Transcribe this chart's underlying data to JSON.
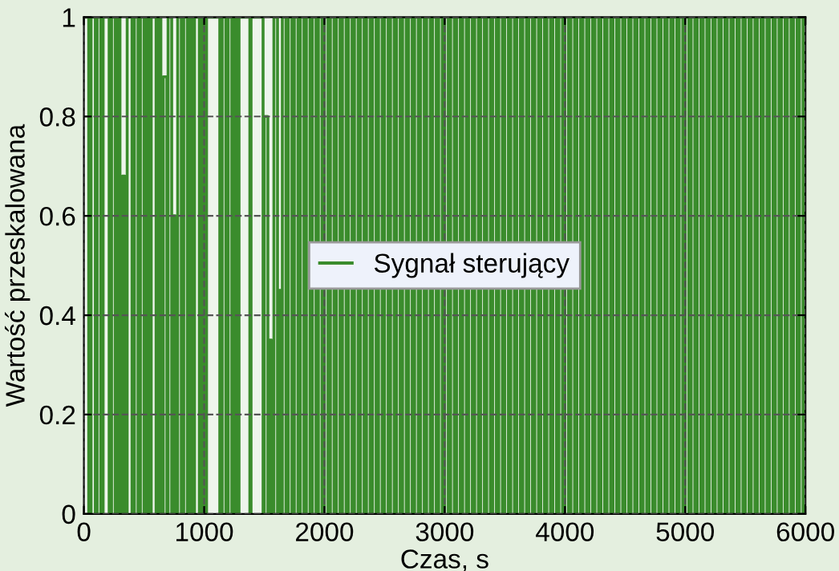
{
  "chart_data": {
    "type": "step",
    "xlabel": "Czas, s",
    "ylabel": "Wartość przeskalowana",
    "xlim": [
      0,
      6000
    ],
    "ylim": [
      0,
      1
    ],
    "xticks": [
      0,
      1000,
      2000,
      3000,
      4000,
      5000,
      6000
    ],
    "yticks": [
      0,
      0.2,
      0.4,
      0.6,
      0.8,
      1
    ],
    "grid": true,
    "legend": "center",
    "series": [
      {
        "name": "Sygnał sterujący",
        "color": "#3a8c2c",
        "x": [
          0,
          40,
          60,
          95,
          110,
          140,
          160,
          210,
          230,
          260,
          280,
          300,
          320,
          340,
          360,
          400,
          420,
          450,
          470,
          500,
          520,
          540,
          560,
          600,
          620,
          640,
          660,
          690,
          700,
          730,
          740,
          760,
          780,
          810,
          830,
          860,
          880,
          900,
          920,
          960,
          980,
          1000,
          1020,
          1130,
          1150,
          1180,
          1200,
          1230,
          1250,
          1270,
          1290,
          1380,
          1390,
          1490,
          1500,
          1530,
          1540,
          1560,
          1580,
          1610,
          1620,
          1640,
          1650,
          1680,
          1700,
          1730,
          1750,
          1780,
          1800,
          1830,
          1850,
          1880,
          1900,
          1930,
          1950,
          1980,
          2000,
          2030,
          2050,
          2080,
          2100,
          2130,
          2150,
          2180,
          2200,
          2230,
          2250,
          2280,
          2300,
          2330,
          2350,
          2380,
          2400,
          2430,
          2450,
          2480,
          2500,
          2530,
          2550,
          2580,
          2600,
          2630,
          2650,
          2680,
          2700,
          2730,
          2750,
          2780,
          2800,
          2830,
          2850,
          2880,
          2900,
          2930,
          2950,
          2980,
          3000,
          3030,
          3050,
          3080,
          3100,
          3130,
          3150,
          3180,
          3200,
          3230,
          3250,
          3280,
          3300,
          3330,
          3350,
          3380,
          3400,
          3430,
          3450,
          3480,
          3500,
          3530,
          3550,
          3580,
          3600,
          3630,
          3650,
          3680,
          3700,
          3730,
          3750,
          3780,
          3800,
          3830,
          3850,
          3880,
          3900,
          3930,
          3950,
          3980,
          4000,
          4030,
          4050,
          4080,
          4100,
          4130,
          4150,
          4180,
          4200,
          4230,
          4250,
          4280,
          4300,
          4330,
          4350,
          4380,
          4400,
          4430,
          4450,
          4480,
          4500,
          4530,
          4550,
          4580,
          4600,
          4630,
          4650,
          4680,
          4700,
          4730,
          4750,
          4780,
          4800,
          4830,
          4850,
          4880,
          4900,
          4930,
          4950,
          4980,
          5000,
          5030,
          5050,
          5080,
          5100,
          5130,
          5150,
          5180,
          5200,
          5230,
          5250,
          5280,
          5300,
          5330,
          5350,
          5380,
          5400,
          5430,
          5450,
          5480,
          5500,
          5530,
          5550,
          5580,
          5600,
          5630,
          5650,
          5680,
          5700,
          5730,
          5750,
          5780,
          5800,
          5830,
          5850,
          5880,
          5900,
          5930,
          5950,
          5980,
          6000
        ],
        "values": [
          1,
          0,
          1,
          0,
          1,
          0,
          1,
          0,
          1,
          0,
          1,
          0,
          0.68,
          0,
          1,
          0,
          1,
          0,
          1,
          0,
          1,
          0,
          1,
          0,
          1,
          0,
          0.88,
          0,
          1,
          0,
          0.6,
          0,
          1,
          0,
          1,
          0,
          1,
          0,
          1,
          0,
          1,
          0,
          1,
          0,
          1,
          0,
          1,
          0,
          1,
          0,
          1,
          0,
          1,
          0,
          0.8,
          0,
          0.35,
          0,
          1,
          0,
          0.45,
          0,
          1,
          0,
          1,
          0,
          1,
          0,
          1,
          0,
          1,
          0,
          1,
          0,
          1,
          0,
          1,
          0,
          1,
          0,
          1,
          0,
          1,
          0,
          1,
          0,
          1,
          0,
          1,
          0,
          1,
          0,
          1,
          0,
          1,
          0,
          1,
          0,
          1,
          0,
          1,
          0,
          1,
          0,
          1,
          0,
          1,
          0,
          1,
          0,
          1,
          0,
          1,
          0,
          1,
          0,
          1,
          0,
          1,
          0,
          1,
          0,
          1,
          0,
          1,
          0,
          1,
          0,
          1,
          0,
          1,
          0,
          1,
          0,
          1,
          0,
          1,
          0,
          1,
          0,
          1,
          0,
          1,
          0,
          1,
          0,
          1,
          0,
          1,
          0,
          1,
          0,
          1,
          0,
          1,
          0,
          1,
          0,
          1,
          0,
          1,
          0,
          1,
          0,
          1,
          0,
          1,
          0,
          1,
          0,
          1,
          0,
          1,
          0,
          1,
          0,
          1,
          0,
          1,
          0,
          1,
          0,
          1,
          0,
          1,
          0,
          1,
          0,
          1,
          0,
          1,
          0,
          1,
          0,
          1,
          0,
          1,
          0,
          1,
          0,
          1,
          0,
          1,
          0,
          1,
          0,
          1,
          0,
          1,
          0,
          1,
          0,
          1,
          0,
          1,
          0,
          1,
          0,
          1,
          0,
          1,
          0,
          1,
          0,
          1,
          0,
          1,
          0,
          1,
          0,
          1,
          0,
          1,
          0,
          1,
          0,
          1
        ]
      }
    ]
  }
}
